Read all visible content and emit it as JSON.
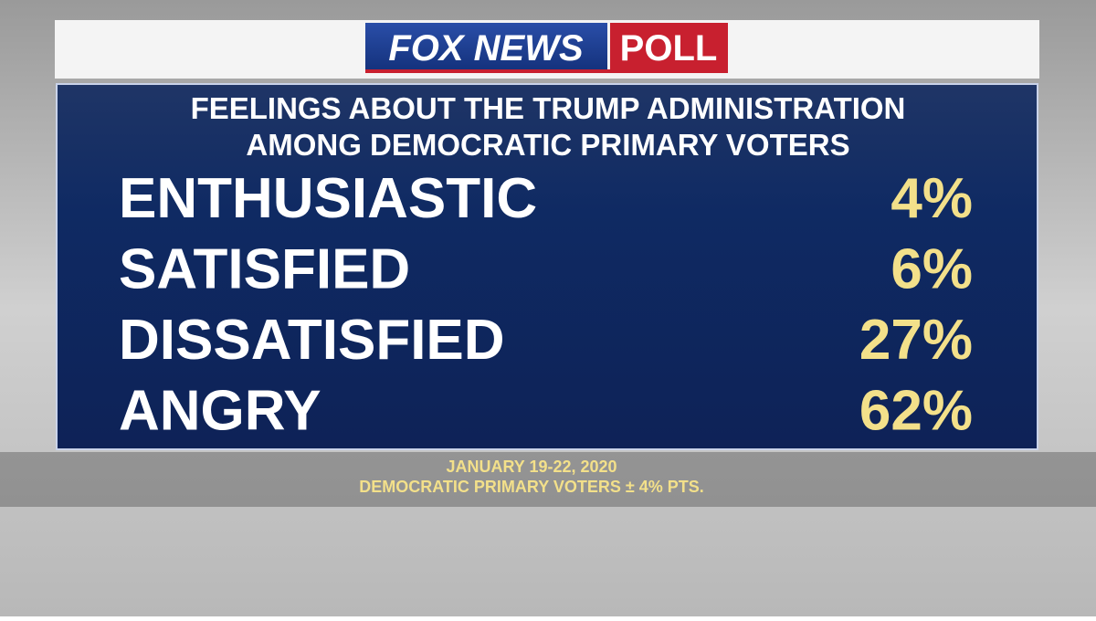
{
  "header": {
    "brand": "FOX NEWS",
    "tag": "POLL"
  },
  "title": [
    "FEELINGS ABOUT THE TRUMP ADMINISTRATION",
    "AMONG DEMOCRATIC PRIMARY VOTERS"
  ],
  "rows": [
    [
      "ENTHUSIASTIC",
      "4%"
    ],
    [
      "SATISFIED",
      "6%"
    ],
    [
      "DISSATISFIED",
      "27%"
    ],
    [
      "ANGRY",
      "62%"
    ]
  ],
  "footer": [
    "JANUARY 19-22, 2020",
    "DEMOCRATIC PRIMARY VOTERS ± 4% PTS."
  ]
}
